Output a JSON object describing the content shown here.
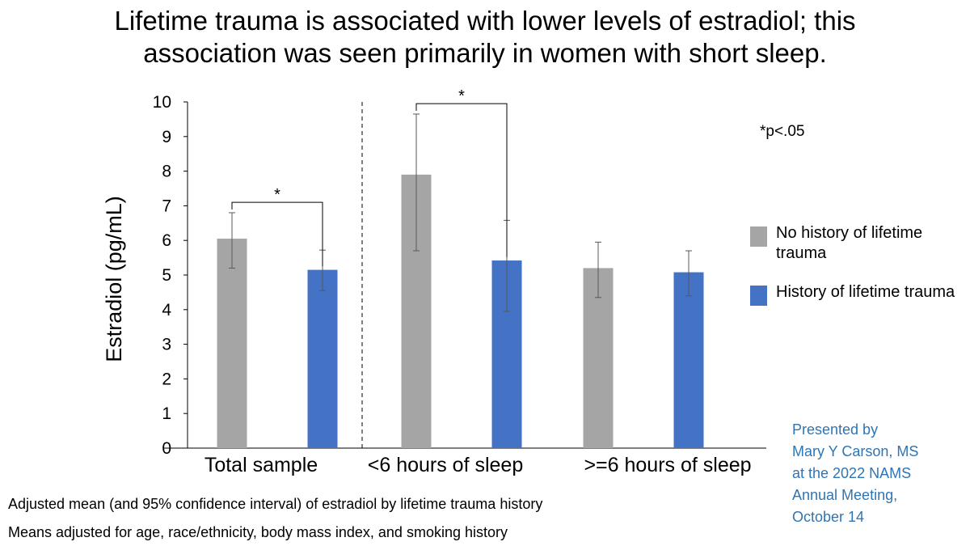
{
  "title_lines": [
    "Lifetime trauma is associated with lower levels of estradiol; this",
    "association was seen primarily in women with short sleep."
  ],
  "significance_note": "*p<.05",
  "footnotes": [
    "Adjusted mean (and 95% confidence interval) of estradiol by lifetime trauma history",
    "Means adjusted for age, race/ethnicity, body mass index, and smoking history"
  ],
  "credit_lines": [
    "Presented by",
    "Mary Y Carson, MS",
    "at the 2022 NAMS",
    "Annual Meeting,",
    "October 14"
  ],
  "colors": {
    "no_trauma": "#a5a5a5",
    "trauma": "#4472c4",
    "credit": "#2e75b6",
    "axis": "#000000",
    "error_bar": "#595959"
  },
  "chart_data": {
    "type": "bar",
    "ylabel": "Estradiol (pg/mL)",
    "ylim": [
      0,
      10
    ],
    "yticks": [
      0,
      1,
      2,
      3,
      4,
      5,
      6,
      7,
      8,
      9,
      10
    ],
    "grid": false,
    "legend_position": "right",
    "categories": [
      "Total sample",
      "<6 hours of sleep",
      ">=6 hours of sleep"
    ],
    "series": [
      {
        "name": "No history of lifetime trauma",
        "color": "#a5a5a5",
        "values": [
          6.05,
          7.9,
          5.2
        ],
        "ci_lower": [
          5.2,
          5.7,
          4.35
        ],
        "ci_upper": [
          6.8,
          9.65,
          5.95
        ]
      },
      {
        "name": "History of lifetime trauma",
        "color": "#4472c4",
        "values": [
          5.15,
          5.42,
          5.08
        ],
        "ci_lower": [
          4.55,
          3.95,
          4.4
        ],
        "ci_upper": [
          5.72,
          6.58,
          5.7
        ]
      }
    ],
    "significance": [
      {
        "category": "Total sample",
        "label": "*"
      },
      {
        "category": "<6 hours of sleep",
        "label": "*"
      }
    ],
    "divider_after_category": "Total sample"
  }
}
